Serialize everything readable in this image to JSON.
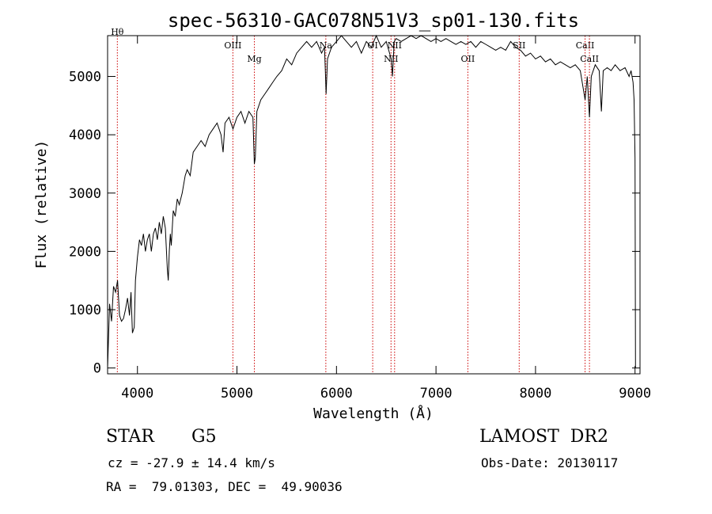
{
  "chart_data": {
    "type": "line",
    "title": "spec-56310-GAC078N51V3_sp01-130.fits",
    "xlabel": "Wavelength (Å)",
    "ylabel": "Flux (relative)",
    "xlim": [
      3700,
      9050
    ],
    "ylim": [
      -100,
      5700
    ],
    "x_ticks": [
      4000,
      5000,
      6000,
      7000,
      8000,
      9000
    ],
    "y_ticks": [
      0,
      1000,
      2000,
      3000,
      4000,
      5000
    ],
    "grid": false,
    "series": [
      {
        "color": "#000000",
        "x": [
          3700,
          3720,
          3740,
          3760,
          3780,
          3800,
          3820,
          3840,
          3860,
          3880,
          3900,
          3920,
          3935,
          3950,
          3968,
          3980,
          4000,
          4020,
          4040,
          4060,
          4080,
          4100,
          4120,
          4140,
          4160,
          4180,
          4200,
          4220,
          4240,
          4260,
          4280,
          4300,
          4310,
          4320,
          4330,
          4340,
          4360,
          4380,
          4400,
          4420,
          4450,
          4480,
          4500,
          4530,
          4560,
          4600,
          4640,
          4680,
          4720,
          4760,
          4800,
          4840,
          4861,
          4880,
          4920,
          4960,
          5000,
          5040,
          5080,
          5120,
          5160,
          5175,
          5184,
          5200,
          5240,
          5280,
          5320,
          5360,
          5400,
          5450,
          5500,
          5550,
          5600,
          5650,
          5700,
          5750,
          5800,
          5850,
          5880,
          5890,
          5896,
          5910,
          5950,
          6000,
          6050,
          6100,
          6150,
          6200,
          6250,
          6300,
          6350,
          6400,
          6450,
          6500,
          6550,
          6563,
          6580,
          6600,
          6650,
          6700,
          6750,
          6800,
          6850,
          6900,
          6950,
          7000,
          7050,
          7100,
          7150,
          7200,
          7250,
          7300,
          7350,
          7400,
          7450,
          7500,
          7550,
          7600,
          7650,
          7700,
          7750,
          7800,
          7850,
          7900,
          7950,
          8000,
          8050,
          8100,
          8150,
          8200,
          8250,
          8300,
          8350,
          8400,
          8450,
          8498,
          8520,
          8542,
          8560,
          8600,
          8640,
          8662,
          8680,
          8720,
          8760,
          8800,
          8850,
          8900,
          8940,
          8960,
          8980,
          8990,
          9000,
          9005
        ],
        "y": [
          0,
          1100,
          800,
          1400,
          1300,
          1500,
          900,
          800,
          850,
          1000,
          1200,
          900,
          1300,
          600,
          700,
          1500,
          1900,
          2200,
          2100,
          2300,
          2000,
          2200,
          2300,
          2000,
          2300,
          2400,
          2200,
          2500,
          2300,
          2600,
          2400,
          1700,
          1500,
          2000,
          2300,
          2100,
          2700,
          2600,
          2900,
          2800,
          3000,
          3300,
          3400,
          3300,
          3700,
          3800,
          3900,
          3800,
          4000,
          4100,
          4200,
          4000,
          3700,
          4200,
          4300,
          4100,
          4300,
          4400,
          4200,
          4400,
          4300,
          3500,
          3600,
          4400,
          4600,
          4700,
          4800,
          4900,
          5000,
          5100,
          5300,
          5200,
          5400,
          5500,
          5600,
          5500,
          5600,
          5400,
          5500,
          5000,
          4700,
          5300,
          5500,
          5600,
          5700,
          5600,
          5500,
          5600,
          5400,
          5600,
          5500,
          5700,
          5500,
          5600,
          5300,
          5000,
          5600,
          5650,
          5600,
          5650,
          5700,
          5650,
          5700,
          5650,
          5600,
          5650,
          5600,
          5650,
          5600,
          5550,
          5600,
          5550,
          5600,
          5500,
          5600,
          5550,
          5500,
          5450,
          5500,
          5450,
          5600,
          5500,
          5450,
          5350,
          5400,
          5300,
          5350,
          5250,
          5300,
          5200,
          5250,
          5200,
          5150,
          5200,
          5100,
          4600,
          5000,
          4300,
          5000,
          5200,
          5100,
          4400,
          5100,
          5150,
          5100,
          5200,
          5100,
          5150,
          5000,
          5100,
          4900,
          4600,
          3600,
          0
        ]
      }
    ],
    "spectral_lines": [
      {
        "label": "Hθ",
        "x": 3798
      },
      {
        "label": "OIII",
        "x": 4959
      },
      {
        "label": "Mg",
        "x": 5175
      },
      {
        "label": "Na",
        "x": 5893
      },
      {
        "label": "OI",
        "x": 6364
      },
      {
        "label": "NII",
        "x": 6548
      },
      {
        "label": "NII",
        "x": 6584
      },
      {
        "label": "OII",
        "x": 7320
      },
      {
        "label": "SII",
        "x": 7836
      },
      {
        "label": "CaII",
        "x": 8498
      },
      {
        "label": "CaII",
        "x": 8542
      }
    ],
    "line_color": "#cc0000"
  },
  "info": {
    "object_class": "STAR",
    "subclass": "G5",
    "survey": "LAMOST  DR2",
    "redshift_text": "cz = -27.9 ± 14.4 km/s",
    "obs_date_text": "Obs-Date: 20130117",
    "coords_text": "RA =  79.01303, DEC =  49.90036"
  }
}
